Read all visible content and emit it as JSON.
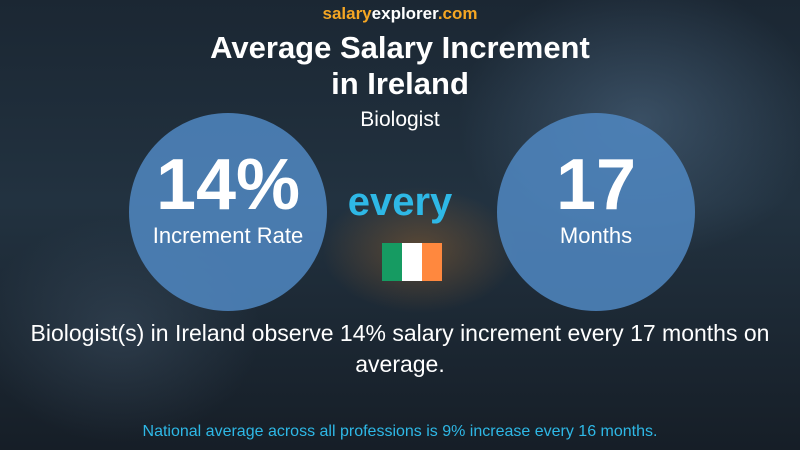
{
  "header": {
    "brand": [
      "salary",
      "explorer",
      ".com"
    ],
    "title": [
      "Average Salary Increment",
      "in Ireland"
    ],
    "subtitle": "Biologist"
  },
  "increment": {
    "value": "14%",
    "label": "Increment Rate"
  },
  "connector": "every",
  "period": {
    "value": "17",
    "label": "Months"
  },
  "description": "Biologist(s) in Ireland observe 14% salary increment every 17 months on average.",
  "footer": "National average across all professions is 9% increase every 16 months."
}
